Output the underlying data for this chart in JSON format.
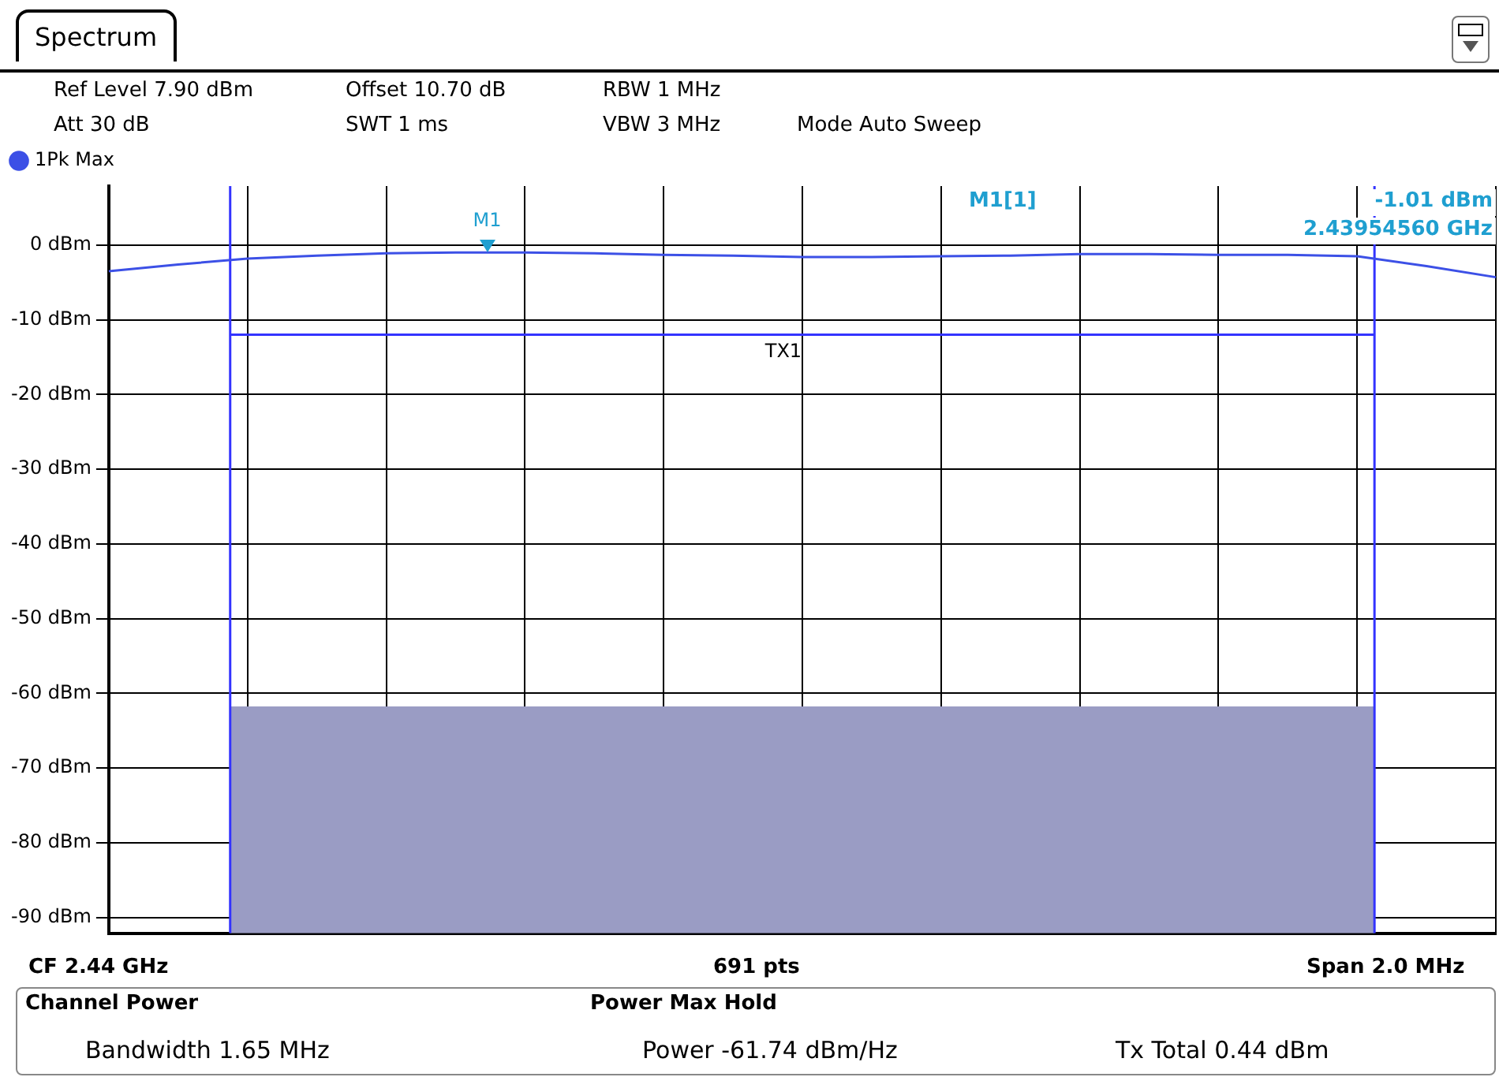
{
  "chart_data": {
    "type": "line",
    "title": "Spectrum",
    "annotations": [
      "Ref Level 7.90 dBm",
      "Offset 10.70 dB",
      "RBW 1 MHz",
      "Att 30 dB",
      "SWT 1 ms",
      "VBW 3 MHz",
      "Mode Auto Sweep",
      "M1[1]",
      "-1.01 dBm",
      "2.43954560 GHz",
      "CF 2.44 GHz",
      "691 pts",
      "Span 2.0 MHz",
      "Channel Power",
      "Power Max Hold",
      "Bandwidth 1.65 MHz",
      "Power -61.74 dBm/Hz",
      "Tx Total 0.44 dBm",
      "M1"
    ],
    "categories": [
      null,
      null,
      null,
      null,
      null,
      null,
      null,
      null,
      null,
      null,
      null,
      null,
      null,
      null,
      null,
      null,
      null,
      null,
      null,
      null,
      null
    ],
    "series": [
      {
        "name": "1Pk Max",
        "color": "#3c50e6",
        "values": [
          -3.5,
          -2.6,
          -1.8,
          -1.4,
          -1.1,
          -1.0,
          -1.0,
          -1.1,
          -1.3,
          -1.4,
          -1.6,
          -1.6,
          -1.5,
          -1.4,
          -1.2,
          -1.2,
          -1.3,
          -1.3,
          -1.5,
          -2.8,
          -4.3
        ]
      }
    ],
    "ref_lines": [
      {
        "axis": "y",
        "value": -12,
        "label": "TX1",
        "color": "#3333ff"
      }
    ],
    "bands": [
      {
        "axis": "y",
        "from": -92.1,
        "to": -61.74,
        "color": "#9a9cc4"
      }
    ],
    "ylim": [
      -92.1,
      7.9
    ],
    "yticks": [
      {
        "value": 0,
        "label": "0 dBm"
      },
      {
        "value": -10,
        "label": "-10 dBm"
      },
      {
        "value": -20,
        "label": "-20 dBm"
      },
      {
        "value": -30,
        "label": "-30 dBm"
      },
      {
        "value": -40,
        "label": "-40 dBm"
      },
      {
        "value": -50,
        "label": "-50 dBm"
      },
      {
        "value": -60,
        "label": "-60 dBm"
      },
      {
        "value": -70,
        "label": "-70 dBm"
      },
      {
        "value": -80,
        "label": "-80 dBm"
      },
      {
        "value": -90,
        "label": "-90 dBm"
      }
    ],
    "tick_labels": "y",
    "grid": true,
    "legend": "top left"
  }
}
